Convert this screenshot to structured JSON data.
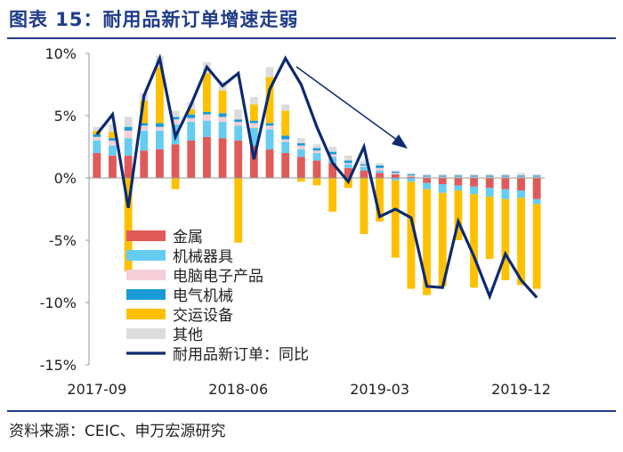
{
  "title": "图表 15：耐用品新订单增速走弱",
  "source": "资料来源：CEIC、申万宏源研究",
  "colors": {
    "metal": "#e05a5a",
    "machinery": "#66ccf2",
    "computer": "#f6cfd8",
    "electrical": "#1a9bd7",
    "transport": "#ffc000",
    "other": "#dcdcdc",
    "line": "#0b2a6f",
    "title": "#1f3c88"
  },
  "chart_data": {
    "type": "bar",
    "stacked": true,
    "ylim": [
      -15,
      10
    ],
    "yticks": [
      10,
      5,
      0,
      -5,
      -10,
      -15
    ],
    "ytick_labels": [
      "10%",
      "5%",
      "0%",
      "-5%",
      "-10%",
      "-15%"
    ],
    "categories": [
      "2017-09",
      "2017-10",
      "2017-11",
      "2017-12",
      "2018-01",
      "2018-02",
      "2018-03",
      "2018-04",
      "2018-05",
      "2018-06",
      "2018-07",
      "2018-08",
      "2018-09",
      "2018-10",
      "2018-11",
      "2018-12",
      "2019-01",
      "2019-02",
      "2019-03",
      "2019-04",
      "2019-05",
      "2019-06",
      "2019-07",
      "2019-08",
      "2019-09",
      "2019-10",
      "2019-11",
      "2019-12",
      "2020-01"
    ],
    "xtick_labels": [
      {
        "index": 0,
        "label": "2017-09"
      },
      {
        "index": 9,
        "label": "2018-06"
      },
      {
        "index": 18,
        "label": "2019-03"
      },
      {
        "index": 27,
        "label": "2019-12"
      }
    ],
    "series": [
      {
        "name": "金属",
        "key": "metal",
        "values": [
          2.0,
          1.8,
          1.8,
          2.2,
          2.3,
          2.7,
          3.0,
          3.3,
          3.2,
          3.0,
          2.6,
          2.3,
          2.0,
          1.7,
          1.4,
          1.2,
          0.8,
          0.6,
          0.4,
          0.3,
          0.1,
          -0.4,
          -0.5,
          -0.6,
          -0.7,
          -0.8,
          -0.9,
          -1.0,
          -1.7
        ]
      },
      {
        "name": "机械器具",
        "key": "machinery",
        "values": [
          1.0,
          0.8,
          1.4,
          1.6,
          1.5,
          1.6,
          1.5,
          1.3,
          1.3,
          1.2,
          1.4,
          1.6,
          0.9,
          0.6,
          0.6,
          0.5,
          0.3,
          0.3,
          0.2,
          -0.2,
          -0.3,
          -0.5,
          -0.7,
          -0.4,
          -0.6,
          -0.7,
          -0.8,
          -0.6,
          -0.4
        ]
      },
      {
        "name": "电脑电子产品",
        "key": "computer",
        "values": [
          0.3,
          0.4,
          0.6,
          0.4,
          0.3,
          0.4,
          0.3,
          0.5,
          0.4,
          0.3,
          0.4,
          0.3,
          0.2,
          0.3,
          0.2,
          0.2,
          0.1,
          0.1,
          0.2,
          0.1,
          0.1,
          0.1,
          0.1,
          0.1,
          0.1,
          0.1,
          0.1,
          0.1,
          0.1
        ]
      },
      {
        "name": "电气机械",
        "key": "electrical",
        "values": [
          0.2,
          0.2,
          0.3,
          0.2,
          0.3,
          0.2,
          0.3,
          0.2,
          0.3,
          0.2,
          0.2,
          0.2,
          0.3,
          0.2,
          0.2,
          0.2,
          0.2,
          0.1,
          0.2,
          0.1,
          0.1,
          0.1,
          0.1,
          0.1,
          0.1,
          0.1,
          0.1,
          0.1,
          0.1
        ]
      },
      {
        "name": "交运设备",
        "key": "transport",
        "values": [
          0.3,
          0.5,
          -7.5,
          1.8,
          4.5,
          -0.9,
          0.4,
          3.1,
          1.8,
          -5.2,
          1.3,
          3.7,
          2.0,
          -0.3,
          -0.6,
          -2.7,
          -0.8,
          -4.5,
          -3.5,
          -6.2,
          -8.6,
          -8.5,
          -7.5,
          -4.0,
          -7.5,
          -5.0,
          -6.5,
          -7.0,
          -6.8
        ]
      },
      {
        "name": "其他",
        "key": "other",
        "values": [
          0.3,
          0.6,
          0.8,
          0.6,
          0.9,
          0.5,
          0.6,
          0.9,
          0.7,
          0.8,
          0.6,
          0.8,
          0.5,
          0.4,
          0.3,
          0.4,
          0.4,
          0.3,
          0.2,
          0.1,
          0.1,
          0.1,
          0.1,
          0.1,
          0.1,
          0.1,
          0.1,
          0.2,
          0.1
        ]
      }
    ],
    "line": {
      "name": "耐用品新订单：同比",
      "values": [
        3.5,
        5.1,
        -2.4,
        6.6,
        9.6,
        3.3,
        5.9,
        8.9,
        7.4,
        8.4,
        1.5,
        7.1,
        9.6,
        7.5,
        4.1,
        1.2,
        -0.3,
        2.5,
        -3.1,
        -2.5,
        -3.2,
        -8.7,
        -8.8,
        -3.5,
        -6.3,
        -9.5,
        -6.1,
        -8.2,
        -9.6
      ]
    },
    "legend_position": "center-left"
  }
}
